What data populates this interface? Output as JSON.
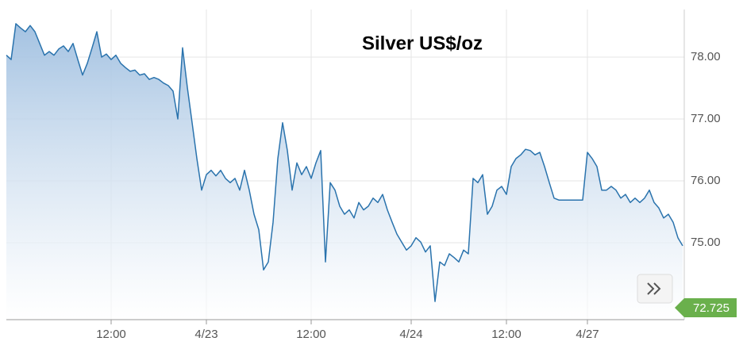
{
  "chart_data": {
    "type": "area",
    "title": "Silver US$/oz",
    "categories": [
      null,
      null,
      null,
      null,
      null,
      null,
      null,
      null,
      null,
      null,
      null,
      null,
      null,
      null,
      null,
      null,
      null,
      null,
      null,
      null,
      null,
      null,
      "12:00",
      null,
      null,
      null,
      null,
      null,
      null,
      null,
      null,
      null,
      null,
      null,
      null,
      null,
      null,
      null,
      null,
      null,
      null,
      null,
      "4/23",
      null,
      null,
      null,
      null,
      null,
      null,
      null,
      null,
      null,
      null,
      null,
      null,
      null,
      null,
      null,
      null,
      null,
      null,
      null,
      null,
      null,
      "12:00",
      null,
      null,
      null,
      null,
      null,
      null,
      null,
      null,
      null,
      null,
      null,
      null,
      null,
      null,
      null,
      null,
      null,
      null,
      null,
      null,
      "4/24",
      null,
      null,
      null,
      null,
      null,
      null,
      null,
      null,
      null,
      null,
      null,
      null,
      null,
      null,
      null,
      null,
      null,
      null,
      null,
      "12:00",
      null,
      null,
      null,
      null,
      null,
      null,
      null,
      null,
      null,
      null,
      null,
      null,
      null,
      null,
      null,
      null,
      "4/27",
      null,
      null,
      null,
      null,
      null,
      null,
      null,
      null,
      null,
      null,
      null,
      null,
      null,
      null,
      null,
      null,
      null,
      null,
      null,
      null
    ],
    "series": [
      {
        "name": "Silver",
        "color": "#2a73ad",
        "values": [
          78.03,
          77.96,
          78.54,
          78.47,
          78.41,
          78.51,
          78.41,
          78.22,
          78.03,
          78.09,
          78.03,
          78.13,
          78.18,
          78.09,
          78.22,
          77.96,
          77.71,
          77.9,
          78.15,
          78.41,
          78.0,
          78.05,
          77.96,
          78.03,
          77.9,
          77.83,
          77.77,
          77.79,
          77.71,
          77.73,
          77.64,
          77.67,
          77.64,
          77.58,
          77.54,
          77.45,
          77.0,
          78.15,
          77.51,
          76.94,
          76.36,
          75.85,
          76.1,
          76.17,
          76.08,
          76.17,
          76.04,
          75.97,
          76.04,
          75.85,
          76.17,
          75.85,
          75.46,
          75.21,
          74.56,
          74.69,
          75.33,
          76.36,
          76.94,
          76.49,
          75.85,
          76.29,
          76.1,
          76.23,
          76.04,
          76.29,
          76.49,
          74.69,
          75.97,
          75.85,
          75.59,
          75.46,
          75.53,
          75.4,
          75.65,
          75.53,
          75.59,
          75.72,
          75.65,
          75.78,
          75.53,
          75.33,
          75.14,
          75.01,
          74.88,
          74.95,
          75.08,
          75.01,
          74.85,
          74.95,
          74.05,
          74.69,
          74.63,
          74.82,
          74.76,
          74.69,
          74.88,
          74.82,
          76.04,
          75.97,
          76.1,
          75.46,
          75.59,
          75.85,
          75.91,
          75.78,
          76.23,
          76.36,
          76.42,
          76.51,
          76.49,
          76.42,
          76.46,
          76.23,
          75.97,
          75.72,
          75.69,
          75.69,
          75.69,
          75.69,
          75.69,
          75.69,
          76.46,
          76.36,
          76.23,
          75.85,
          75.85,
          75.91,
          75.85,
          75.72,
          75.78,
          75.65,
          75.72,
          75.65,
          75.72,
          75.85,
          75.65,
          75.56,
          75.4,
          75.46,
          75.33,
          75.08,
          74.95
        ]
      }
    ],
    "ylim": [
      73.756,
      78.769
    ],
    "yticks": [
      {
        "value": 75,
        "label": "75.00"
      },
      {
        "value": 76,
        "label": "76.00"
      },
      {
        "value": 77,
        "label": "77.00"
      },
      {
        "value": 78,
        "label": "78.00"
      }
    ],
    "grid": true,
    "last_price": 72.725,
    "last_price_color": "#6ab04c"
  }
}
